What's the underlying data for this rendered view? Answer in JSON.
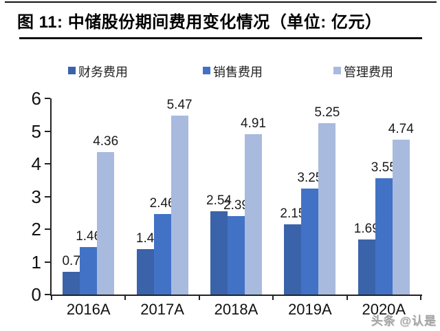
{
  "header": {
    "title": "图 11: 中储股份期间费用变化情况（单位: 亿元）"
  },
  "chart_data": {
    "type": "bar",
    "title": "中储股份期间费用变化情况",
    "unit": "亿元",
    "categories": [
      "2016A",
      "2017A",
      "2018A",
      "2019A",
      "2020A"
    ],
    "series": [
      {
        "name": "财务费用",
        "color": "#3a63a9",
        "values": [
          0.7,
          1.4,
          2.54,
          2.15,
          1.69
        ]
      },
      {
        "name": "销售费用",
        "color": "#4272c6",
        "values": [
          1.46,
          2.46,
          2.39,
          3.25,
          3.55
        ]
      },
      {
        "name": "管理费用",
        "color": "#a9badf",
        "values": [
          4.36,
          5.47,
          4.91,
          5.25,
          4.74
        ]
      }
    ],
    "ylim": [
      0,
      6
    ],
    "yticks": [
      0,
      1,
      2,
      3,
      4,
      5,
      6
    ],
    "grid": false,
    "legend_position": "top",
    "axis_color": "#222222",
    "label_color": "#1a1a1a"
  },
  "footer": {
    "watermark": "头条 @认是"
  }
}
